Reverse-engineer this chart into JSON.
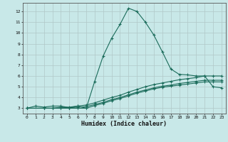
{
  "title": "",
  "xlabel": "Humidex (Indice chaleur)",
  "background_color": "#c8e8e8",
  "grid_color": "#b0c8c8",
  "line_color": "#1a6b5a",
  "xlim": [
    -0.5,
    23.5
  ],
  "ylim": [
    2.5,
    12.8
  ],
  "xticks": [
    0,
    1,
    2,
    3,
    4,
    5,
    6,
    7,
    8,
    9,
    10,
    11,
    12,
    13,
    14,
    15,
    16,
    17,
    18,
    19,
    20,
    21,
    22,
    23
  ],
  "yticks": [
    3,
    4,
    5,
    6,
    7,
    8,
    9,
    10,
    11,
    12
  ],
  "series": [
    {
      "x": [
        0,
        1,
        2,
        3,
        4,
        5,
        6,
        7,
        8,
        9,
        10,
        11,
        12,
        13,
        14,
        15,
        16,
        17,
        18,
        19,
        20,
        21,
        22,
        23
      ],
      "y": [
        3.0,
        3.2,
        3.1,
        3.2,
        3.2,
        3.05,
        3.2,
        3.0,
        5.5,
        7.85,
        9.5,
        10.8,
        12.3,
        12.0,
        11.0,
        9.8,
        8.25,
        6.65,
        6.15,
        6.1,
        6.0,
        6.0,
        5.0,
        4.9
      ]
    },
    {
      "x": [
        0,
        2,
        3,
        4,
        5,
        6,
        7,
        8,
        9,
        10,
        11,
        12,
        13,
        14,
        15,
        16,
        17,
        18,
        19,
        20,
        21,
        22,
        23
      ],
      "y": [
        3.0,
        3.0,
        3.0,
        3.1,
        3.1,
        3.2,
        3.3,
        3.5,
        3.75,
        4.0,
        4.2,
        4.5,
        4.75,
        5.0,
        5.2,
        5.35,
        5.5,
        5.65,
        5.75,
        5.85,
        6.0,
        6.0,
        6.0
      ]
    },
    {
      "x": [
        0,
        2,
        3,
        4,
        5,
        6,
        7,
        8,
        9,
        10,
        11,
        12,
        13,
        14,
        15,
        16,
        17,
        18,
        19,
        20,
        21,
        22,
        23
      ],
      "y": [
        3.0,
        3.0,
        3.0,
        3.05,
        3.05,
        3.1,
        3.15,
        3.35,
        3.55,
        3.8,
        4.0,
        4.25,
        4.5,
        4.7,
        4.9,
        5.05,
        5.15,
        5.3,
        5.4,
        5.5,
        5.6,
        5.6,
        5.6
      ]
    },
    {
      "x": [
        0,
        2,
        3,
        4,
        5,
        6,
        7,
        8,
        9,
        10,
        11,
        12,
        13,
        14,
        15,
        16,
        17,
        18,
        19,
        20,
        21,
        22,
        23
      ],
      "y": [
        3.0,
        3.0,
        3.0,
        3.0,
        3.0,
        3.0,
        3.0,
        3.25,
        3.45,
        3.7,
        3.9,
        4.15,
        4.4,
        4.6,
        4.8,
        4.95,
        5.05,
        5.15,
        5.25,
        5.35,
        5.45,
        5.45,
        5.45
      ]
    }
  ]
}
